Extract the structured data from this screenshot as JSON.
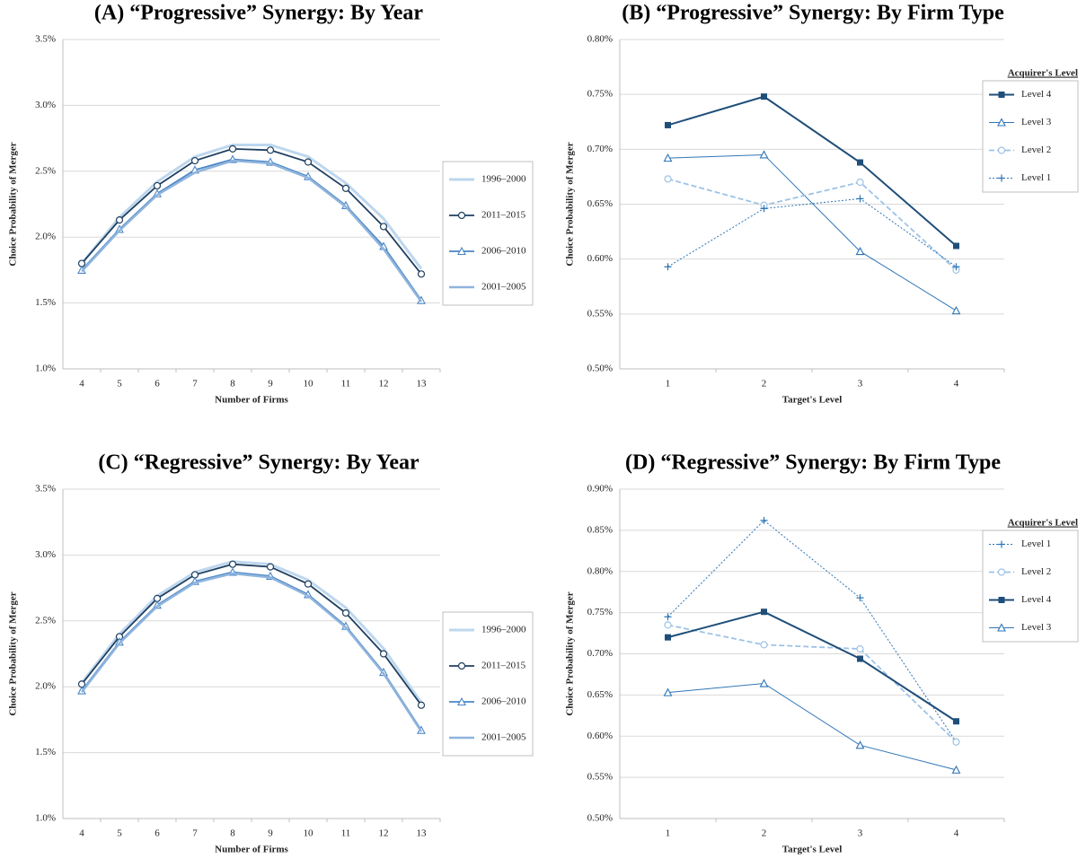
{
  "chart_data": [
    {
      "type": "line",
      "title": "(A)  “Progressive” Synergy: By Year",
      "x_label": "Number of Firms",
      "y_label": "Choice Probability of Merger",
      "categories": [
        "4",
        "5",
        "6",
        "7",
        "8",
        "9",
        "10",
        "11",
        "12",
        "13"
      ],
      "series": [
        {
          "name": "1996–2000",
          "color": "#bdd7ee",
          "marker": "none",
          "dash": "solid",
          "line_width": 3,
          "values": [
            1.8,
            2.15,
            2.42,
            2.61,
            2.7,
            2.7,
            2.61,
            2.41,
            2.14,
            1.76
          ]
        },
        {
          "name": "2011–2015",
          "color": "#1f3f60",
          "marker": "circle",
          "dash": "solid",
          "line_width": 1.8,
          "values": [
            1.8,
            2.13,
            2.39,
            2.58,
            2.67,
            2.66,
            2.57,
            2.37,
            2.08,
            1.72
          ]
        },
        {
          "name": "2006–2010",
          "color": "#4a86c5",
          "marker": "triangle",
          "dash": "solid",
          "line_width": 1.8,
          "values": [
            1.75,
            2.06,
            2.33,
            2.51,
            2.59,
            2.57,
            2.46,
            2.24,
            1.93,
            1.52
          ]
        },
        {
          "name": "2001–2005",
          "color": "#8fb4dd",
          "marker": "none",
          "dash": "solid",
          "line_width": 2.5,
          "values": [
            1.74,
            2.05,
            2.32,
            2.49,
            2.58,
            2.56,
            2.45,
            2.23,
            1.91,
            1.51
          ]
        }
      ],
      "ylim": [
        1.0,
        3.5
      ],
      "yticks": [
        {
          "value": 1.0,
          "label": "1.0%"
        },
        {
          "value": 1.5,
          "label": "1.5%"
        },
        {
          "value": 2.0,
          "label": "2.0%"
        },
        {
          "value": 2.5,
          "label": "2.5%"
        },
        {
          "value": 3.0,
          "label": "3.0%"
        },
        {
          "value": 3.5,
          "label": "3.5%"
        }
      ],
      "grid": true,
      "legend": "right"
    },
    {
      "type": "line",
      "title": "(B)  “Progressive” Synergy: By Firm Type",
      "x_label": "Target's Level",
      "y_label": "Choice Probability of Merger",
      "legend_title": "Acquirer's Level",
      "categories": [
        "1",
        "2",
        "3",
        "4"
      ],
      "series": [
        {
          "name": "Level 4",
          "color": "#1f4e79",
          "marker": "square",
          "dash": "solid",
          "line_width": 2,
          "values": [
            0.722,
            0.748,
            0.688,
            0.612
          ]
        },
        {
          "name": "Level 3",
          "color": "#2e75b6",
          "marker": "triangle",
          "dash": "solid",
          "line_width": 1,
          "values": [
            0.692,
            0.695,
            0.607,
            0.553
          ]
        },
        {
          "name": "Level 2",
          "color": "#9dc3e6",
          "marker": "circle",
          "dash": "dashed",
          "line_width": 1.8,
          "values": [
            0.673,
            0.649,
            0.67,
            0.59
          ]
        },
        {
          "name": "Level 1",
          "color": "#2e75b6",
          "marker": "plus",
          "dash": "dotted",
          "line_width": 1,
          "values": [
            0.593,
            0.646,
            0.655,
            0.593
          ]
        }
      ],
      "ylim": [
        0.5,
        0.8
      ],
      "yticks": [
        {
          "value": 0.5,
          "label": "0.50%"
        },
        {
          "value": 0.55,
          "label": "0.55%"
        },
        {
          "value": 0.6,
          "label": "0.60%"
        },
        {
          "value": 0.65,
          "label": "0.65%"
        },
        {
          "value": 0.7,
          "label": "0.70%"
        },
        {
          "value": 0.75,
          "label": "0.75%"
        },
        {
          "value": 0.8,
          "label": "0.80%"
        }
      ],
      "grid": true,
      "legend": "top-right"
    },
    {
      "type": "line",
      "title": "(C)  “Regressive” Synergy: By Year",
      "x_label": "Number of Firms",
      "y_label": "Choice Probability of Merger",
      "categories": [
        "4",
        "5",
        "6",
        "7",
        "8",
        "9",
        "10",
        "11",
        "12",
        "13"
      ],
      "series": [
        {
          "name": "1996–2000",
          "color": "#bdd7ee",
          "marker": "none",
          "dash": "solid",
          "line_width": 3,
          "values": [
            2.03,
            2.4,
            2.69,
            2.87,
            2.95,
            2.93,
            2.81,
            2.6,
            2.29,
            1.88
          ]
        },
        {
          "name": "2011–2015",
          "color": "#1f3f60",
          "marker": "circle",
          "dash": "solid",
          "line_width": 1.8,
          "values": [
            2.02,
            2.38,
            2.67,
            2.85,
            2.93,
            2.91,
            2.78,
            2.56,
            2.25,
            1.86
          ]
        },
        {
          "name": "2006–2010",
          "color": "#4a86c5",
          "marker": "triangle",
          "dash": "solid",
          "line_width": 1.8,
          "values": [
            1.97,
            2.34,
            2.62,
            2.8,
            2.87,
            2.84,
            2.7,
            2.46,
            2.11,
            1.67
          ]
        },
        {
          "name": "2001–2005",
          "color": "#8fb4dd",
          "marker": "none",
          "dash": "solid",
          "line_width": 2.5,
          "values": [
            1.96,
            2.33,
            2.61,
            2.79,
            2.86,
            2.83,
            2.69,
            2.45,
            2.1,
            1.66
          ]
        }
      ],
      "ylim": [
        1.0,
        3.5
      ],
      "yticks": [
        {
          "value": 1.0,
          "label": "1.0%"
        },
        {
          "value": 1.5,
          "label": "1.5%"
        },
        {
          "value": 2.0,
          "label": "2.0%"
        },
        {
          "value": 2.5,
          "label": "2.5%"
        },
        {
          "value": 3.0,
          "label": "3.0%"
        },
        {
          "value": 3.5,
          "label": "3.5%"
        }
      ],
      "grid": true,
      "legend": "right"
    },
    {
      "type": "line",
      "title": "(D)  “Regressive” Synergy: By Firm Type",
      "x_label": "Target's Level",
      "y_label": "Choice Probability of Merger",
      "legend_title": "Acquirer's Level",
      "categories": [
        "1",
        "2",
        "3",
        "4"
      ],
      "series": [
        {
          "name": "Level 1",
          "color": "#2e75b6",
          "marker": "plus",
          "dash": "dotted",
          "line_width": 1,
          "values": [
            0.745,
            0.862,
            0.768,
            0.593
          ]
        },
        {
          "name": "Level 2",
          "color": "#9dc3e6",
          "marker": "circle",
          "dash": "dashed",
          "line_width": 1.8,
          "values": [
            0.735,
            0.711,
            0.706,
            0.593
          ]
        },
        {
          "name": "Level 4",
          "color": "#1f4e79",
          "marker": "square",
          "dash": "solid",
          "line_width": 2,
          "values": [
            0.72,
            0.751,
            0.694,
            0.618
          ]
        },
        {
          "name": "Level 3",
          "color": "#2e75b6",
          "marker": "triangle",
          "dash": "solid",
          "line_width": 1,
          "values": [
            0.653,
            0.664,
            0.589,
            0.559
          ]
        }
      ],
      "ylim": [
        0.5,
        0.9
      ],
      "yticks": [
        {
          "value": 0.5,
          "label": "0.50%"
        },
        {
          "value": 0.55,
          "label": "0.55%"
        },
        {
          "value": 0.6,
          "label": "0.60%"
        },
        {
          "value": 0.65,
          "label": "0.65%"
        },
        {
          "value": 0.7,
          "label": "0.70%"
        },
        {
          "value": 0.75,
          "label": "0.75%"
        },
        {
          "value": 0.8,
          "label": "0.80%"
        },
        {
          "value": 0.85,
          "label": "0.85%"
        },
        {
          "value": 0.9,
          "label": "0.90%"
        }
      ],
      "grid": true,
      "legend": "top-right"
    }
  ]
}
